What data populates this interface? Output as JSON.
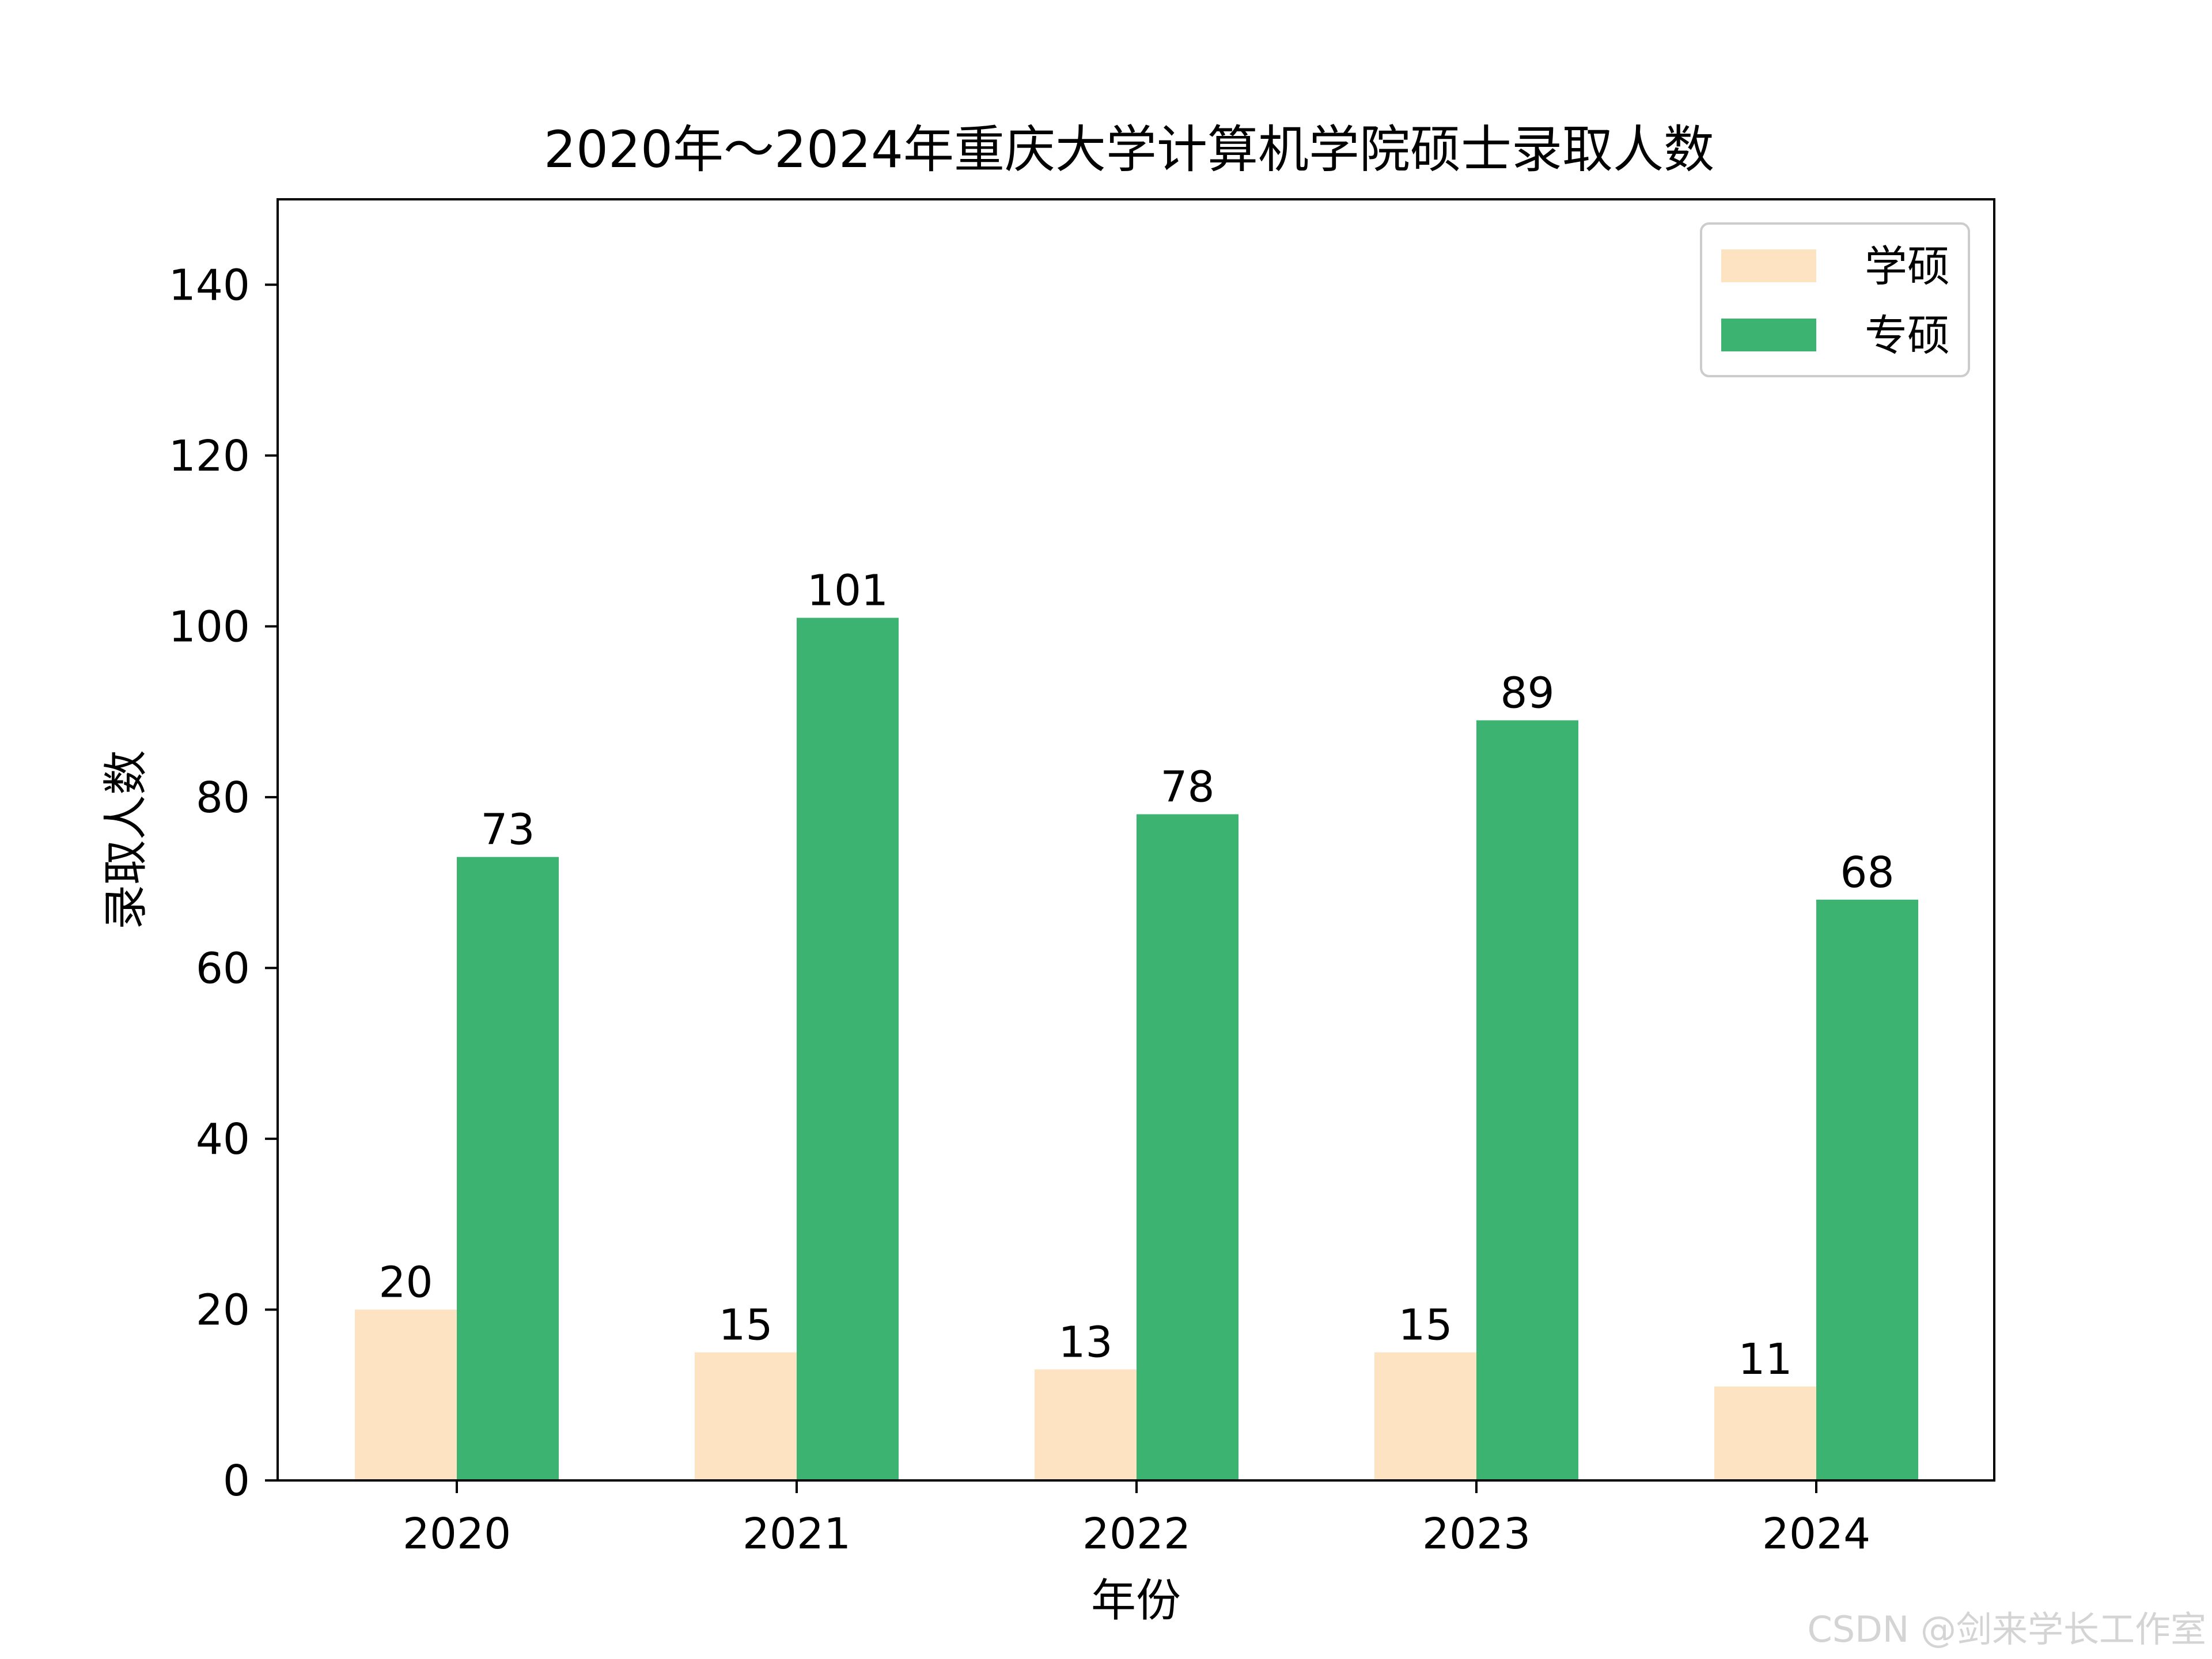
{
  "chart_data": {
    "type": "bar",
    "title": "2020年～2024年重庆大学计算机学院硕士录取人数",
    "xlabel": "年份",
    "ylabel": "录取人数",
    "categories": [
      "2020",
      "2021",
      "2022",
      "2023",
      "2024"
    ],
    "series": [
      {
        "name": "学硕",
        "color": "#FDE3C2",
        "values": [
          20,
          15,
          13,
          15,
          11
        ]
      },
      {
        "name": "专硕",
        "color": "#3CB371",
        "values": [
          73,
          101,
          78,
          89,
          68
        ]
      }
    ],
    "ylim": [
      0,
      150
    ],
    "yticks": [
      0,
      20,
      40,
      60,
      80,
      100,
      120,
      140
    ],
    "grid": false,
    "legend_position": "top-right",
    "data_labels": true
  },
  "watermark": "CSDN @剑来学长工作室"
}
